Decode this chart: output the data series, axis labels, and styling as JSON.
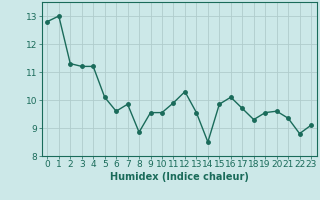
{
  "x": [
    0,
    1,
    2,
    3,
    4,
    5,
    6,
    7,
    8,
    9,
    10,
    11,
    12,
    13,
    14,
    15,
    16,
    17,
    18,
    19,
    20,
    21,
    22,
    23
  ],
  "y": [
    12.8,
    13.0,
    11.3,
    11.2,
    11.2,
    10.1,
    9.6,
    9.85,
    8.85,
    9.55,
    9.55,
    9.9,
    10.3,
    9.55,
    8.5,
    9.85,
    10.1,
    9.7,
    9.3,
    9.55,
    9.6,
    9.35,
    8.8,
    9.1
  ],
  "line_color": "#1a6b5a",
  "marker": "o",
  "marker_size": 2.5,
  "bg_color": "#cce8e8",
  "grid_color": "#b0cccc",
  "xlabel": "Humidex (Indice chaleur)",
  "ylim": [
    8,
    13.5
  ],
  "xlim": [
    -0.5,
    23.5
  ],
  "yticks": [
    8,
    9,
    10,
    11,
    12,
    13
  ],
  "xticks": [
    0,
    1,
    2,
    3,
    4,
    5,
    6,
    7,
    8,
    9,
    10,
    11,
    12,
    13,
    14,
    15,
    16,
    17,
    18,
    19,
    20,
    21,
    22,
    23
  ],
  "xlabel_fontsize": 7,
  "tick_fontsize": 6.5,
  "line_width": 1.0
}
